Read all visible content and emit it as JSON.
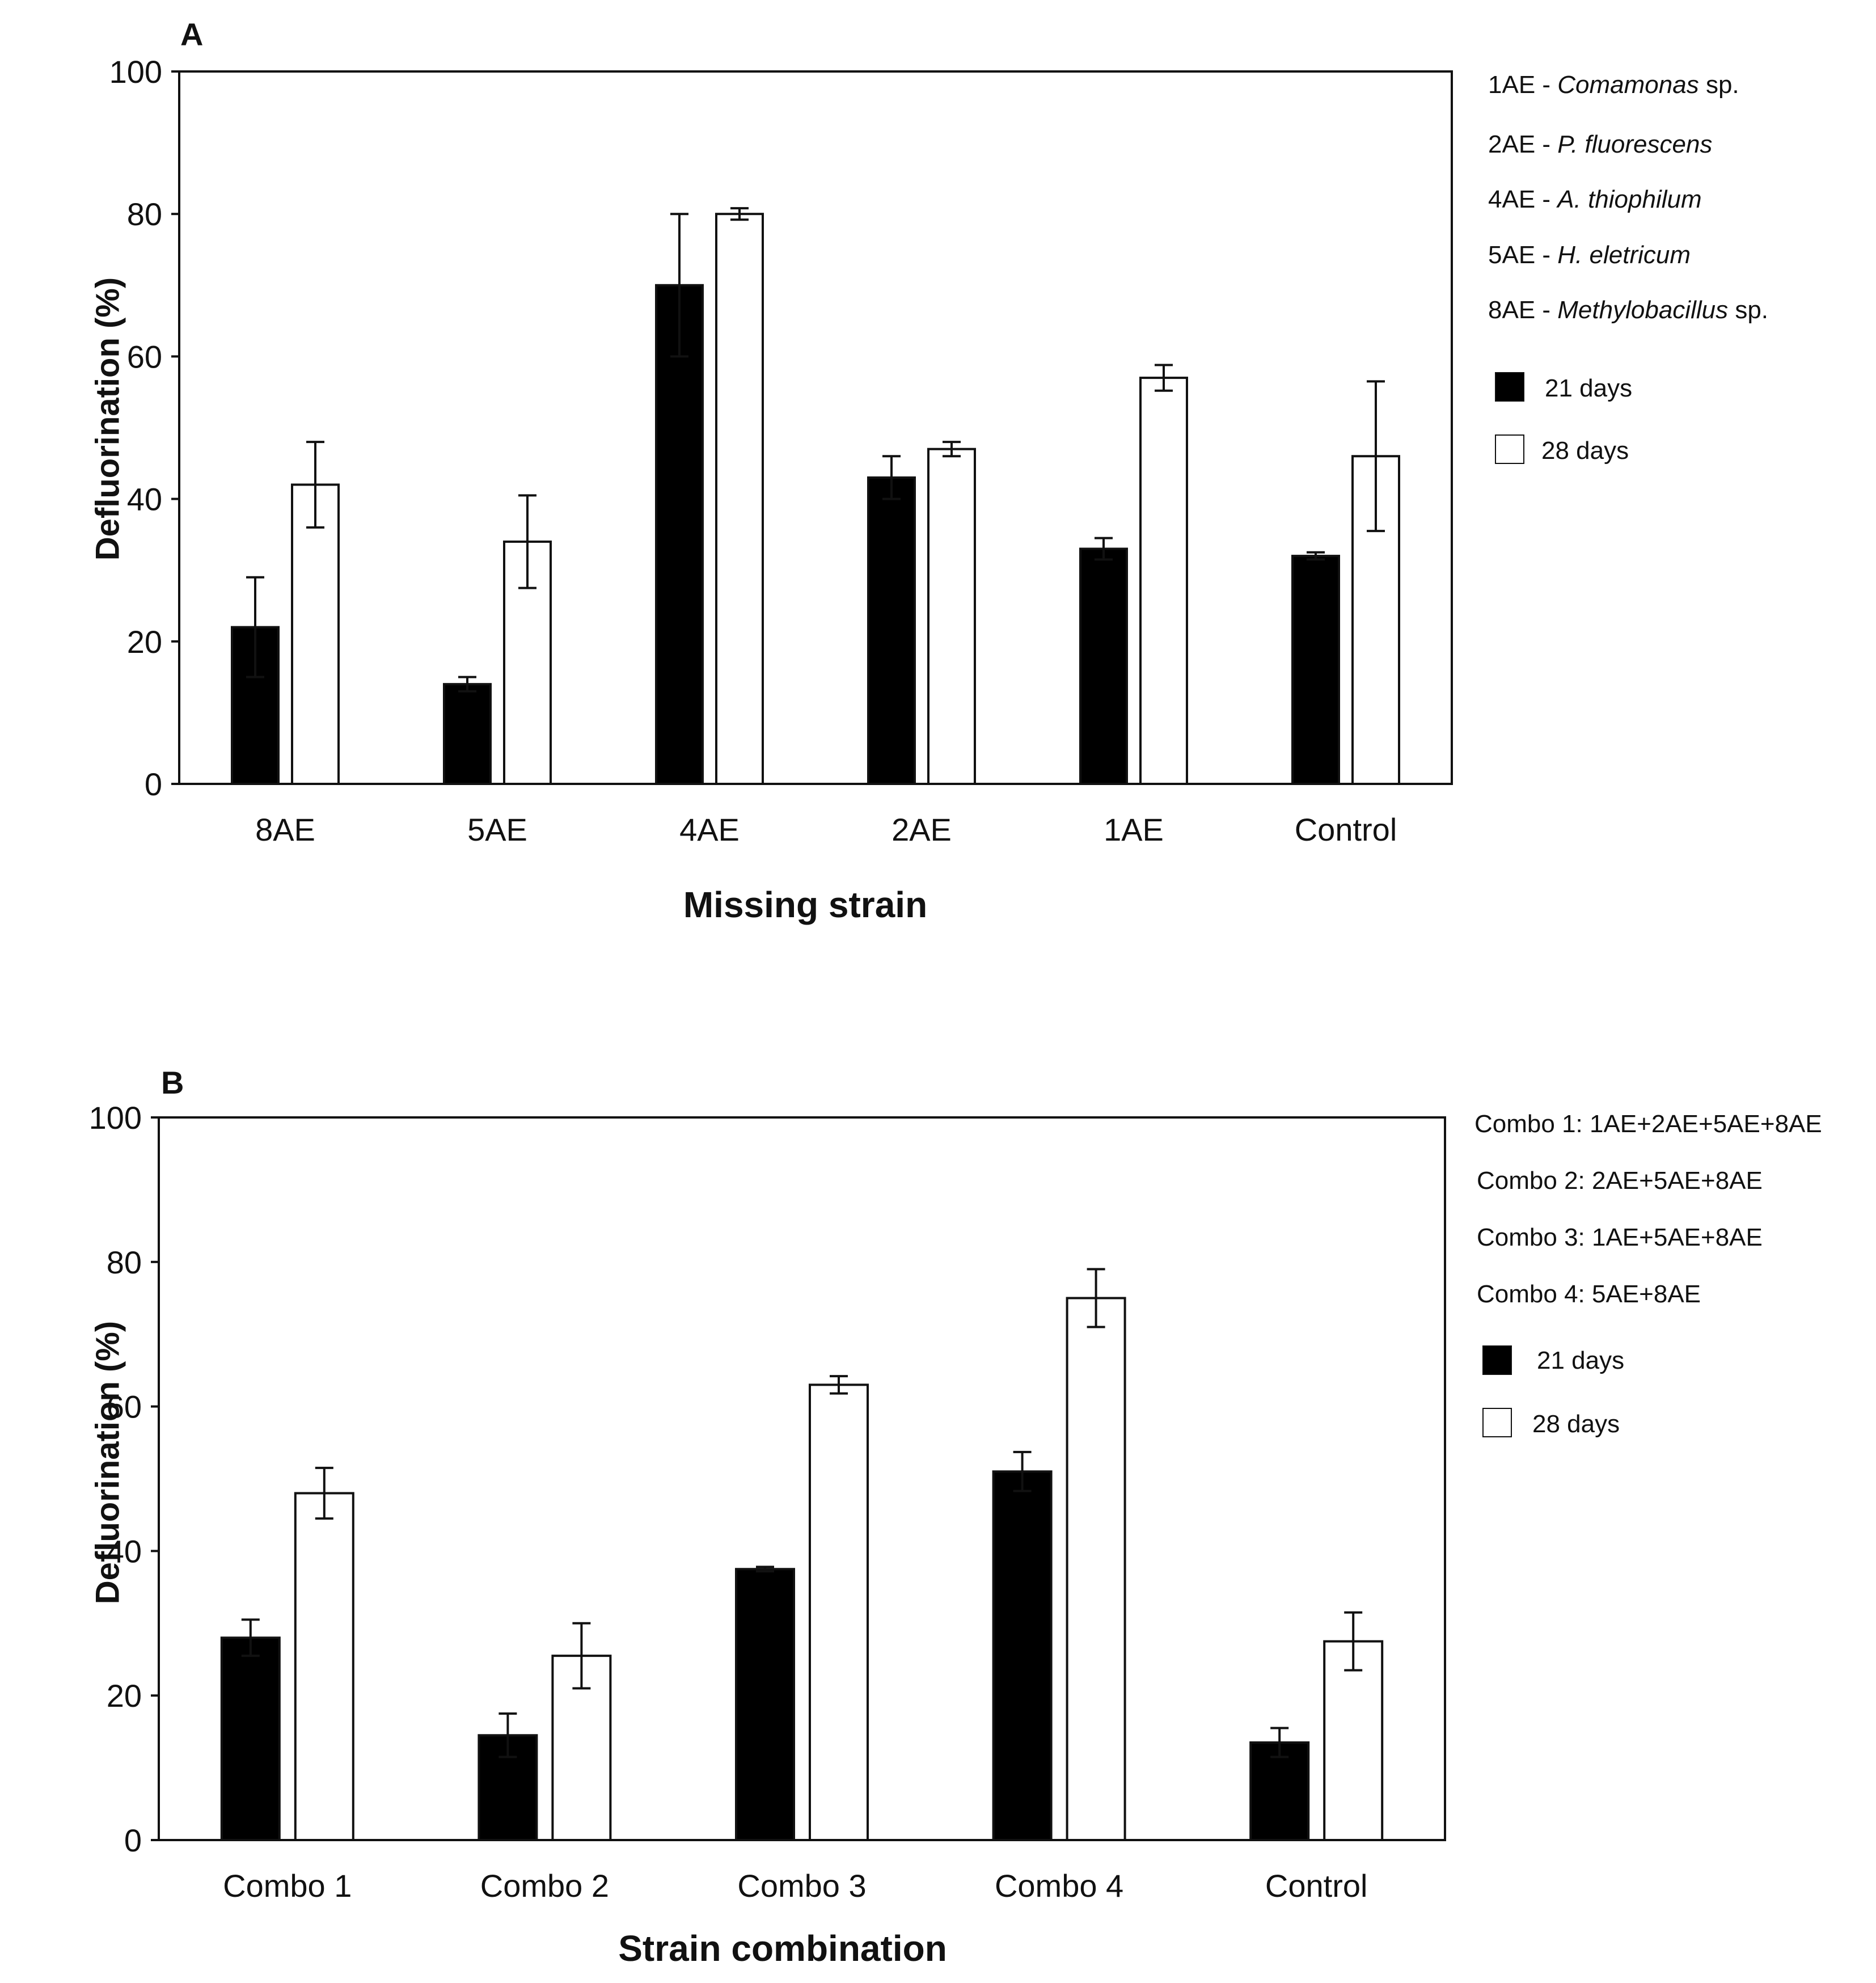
{
  "colors": {
    "series_21": "#000000",
    "series_28": "#ffffff",
    "axis": "#111111"
  },
  "chart_data": [
    {
      "panel": "A",
      "type": "bar",
      "xlabel": "Missing strain",
      "ylabel": "Defluorination (%)",
      "ylim": [
        0,
        100
      ],
      "yticks": [
        0,
        20,
        40,
        60,
        80,
        100
      ],
      "categories": [
        "8AE",
        "5AE",
        "4AE",
        "2AE",
        "1AE",
        "Control"
      ],
      "series": [
        {
          "name": "21 days",
          "values": [
            22,
            14,
            70,
            43,
            33,
            32
          ],
          "errors": [
            7,
            1,
            10,
            3,
            1.5,
            0.5
          ]
        },
        {
          "name": "28 days",
          "values": [
            42,
            34,
            80,
            47,
            57,
            46
          ],
          "errors": [
            6,
            6.5,
            0.8,
            1,
            1.8,
            10.5
          ]
        }
      ],
      "notes": [
        {
          "code": "1AE - ",
          "species": "Comamonas",
          "suffix": " sp."
        },
        {
          "code": "2AE - ",
          "species": "P. fluorescens",
          "suffix": ""
        },
        {
          "code": "4AE - ",
          "species": "A. thiophilum",
          "suffix": ""
        },
        {
          "code": "5AE - ",
          "species": "H. eletricum",
          "suffix": ""
        },
        {
          "code": "8AE - ",
          "species": "Methylobacillus",
          "suffix": " sp."
        }
      ],
      "legend": [
        "21 days",
        "28 days"
      ],
      "legend_position": "right",
      "grid": false
    },
    {
      "panel": "B",
      "type": "bar",
      "xlabel": "Strain combination",
      "ylabel": "Defluorination (%)",
      "ylim": [
        0,
        100
      ],
      "yticks": [
        0,
        20,
        40,
        60,
        80,
        100
      ],
      "categories": [
        "Combo 1",
        "Combo 2",
        "Combo 3",
        "Combo 4",
        "Control"
      ],
      "series": [
        {
          "name": "21 days",
          "values": [
            28,
            14.5,
            37.5,
            51,
            13.5
          ],
          "errors": [
            2.5,
            3,
            0.3,
            2.7,
            2
          ]
        },
        {
          "name": "28 days",
          "values": [
            48,
            25.5,
            63,
            75,
            27.5
          ],
          "errors": [
            3.5,
            4.5,
            1.2,
            4,
            4
          ]
        }
      ],
      "notes": [
        {
          "code": "Combo 1: 1AE+2AE+5AE+8AE"
        },
        {
          "code": "Combo 2: 2AE+5AE+8AE"
        },
        {
          "code": "Combo 3: 1AE+5AE+8AE"
        },
        {
          "code": "Combo 4: 5AE+8AE"
        }
      ],
      "legend": [
        "21 days",
        "28 days"
      ],
      "legend_position": "right",
      "grid": false
    }
  ]
}
